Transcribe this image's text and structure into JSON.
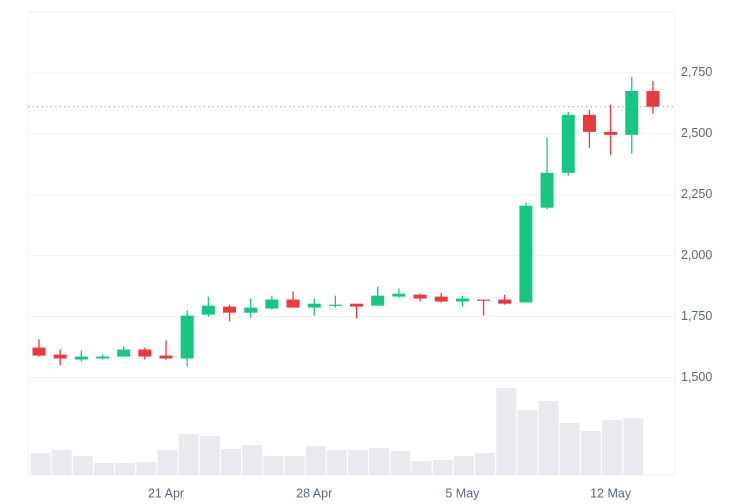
{
  "chart_data": {
    "type": "candlestick",
    "categories": [
      null,
      null,
      null,
      null,
      null,
      null,
      "21 Apr",
      null,
      null,
      null,
      null,
      null,
      null,
      "28 Apr",
      null,
      null,
      null,
      null,
      null,
      null,
      "5 May",
      null,
      null,
      null,
      null,
      null,
      null,
      "12 May",
      null,
      null
    ],
    "open": [
      1623,
      1594,
      1574,
      1578,
      1586,
      1615,
      1590,
      1578,
      1758,
      1791,
      1766,
      1783,
      1820,
      1787,
      1795,
      1803,
      1795,
      1832,
      1840,
      1832,
      1812,
      1820,
      1820,
      1808,
      2197,
      2340,
      2578,
      2508,
      2496,
      2676
    ],
    "high": [
      1656,
      1615,
      1611,
      1594,
      1627,
      1623,
      1652,
      1775,
      1832,
      1799,
      1824,
      1836,
      1853,
      1824,
      1836,
      1803,
      1873,
      1865,
      1844,
      1848,
      1836,
      1820,
      1840,
      2217,
      2484,
      2590,
      2598,
      2619,
      2734,
      2717
    ],
    "low": [
      1586,
      1549,
      1566,
      1574,
      1586,
      1574,
      1574,
      1545,
      1750,
      1730,
      1746,
      1779,
      1787,
      1754,
      1787,
      1742,
      1795,
      1828,
      1812,
      1808,
      1791,
      1754,
      1799,
      1808,
      2189,
      2328,
      2443,
      2414,
      2418,
      2582
    ],
    "close": [
      1590,
      1578,
      1586,
      1586,
      1615,
      1586,
      1578,
      1754,
      1795,
      1766,
      1787,
      1820,
      1787,
      1803,
      1799,
      1791,
      1836,
      1844,
      1824,
      1812,
      1824,
      1816,
      1803,
      2205,
      2340,
      2578,
      2508,
      2496,
      2676,
      2611
    ],
    "volume": [
      22,
      25,
      19,
      12,
      12,
      13,
      25,
      41,
      39,
      26,
      30,
      19,
      19,
      29,
      25,
      25,
      27,
      24,
      14,
      15,
      19,
      22,
      87,
      65,
      74,
      52,
      44,
      55,
      57,
      null
    ],
    "up_color": "#16c784",
    "down_color": "#ea3943",
    "volume_color": "#e9eaed",
    "ylim": [
      1100,
      3000
    ],
    "yticks": [
      {
        "value": 1500,
        "label": "1,500"
      },
      {
        "value": 1750,
        "label": "1,750"
      },
      {
        "value": 2000,
        "label": "2,000"
      },
      {
        "value": 2250,
        "label": "2,250"
      },
      {
        "value": 2500,
        "label": "2,500"
      },
      {
        "value": 2750,
        "label": "2,750"
      }
    ],
    "grid": true,
    "last_price_line": true
  }
}
